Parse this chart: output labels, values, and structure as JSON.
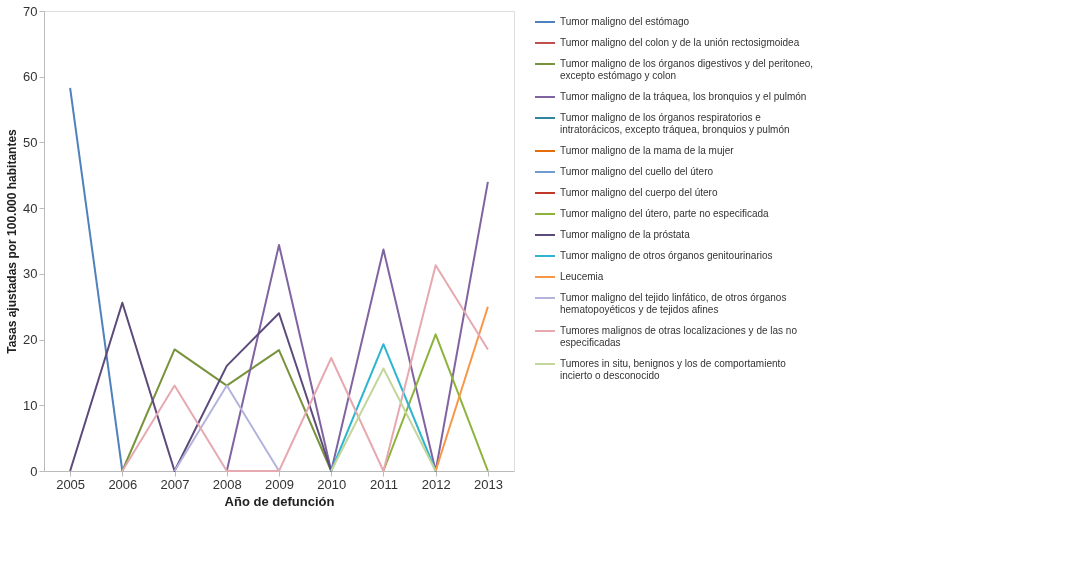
{
  "chart_data": {
    "type": "line",
    "xlabel": "Año de defunción",
    "ylabel": "Tasas ajustadas por 100.000 habitantes",
    "categories": [
      "2005",
      "2006",
      "2007",
      "2008",
      "2009",
      "2010",
      "2011",
      "2012",
      "2013"
    ],
    "ylim": [
      0,
      70
    ],
    "yticks": [
      0,
      10,
      20,
      30,
      40,
      50,
      60,
      70
    ],
    "grid": false,
    "legend": "right",
    "marker": "none",
    "line_style": "solid",
    "series": [
      {
        "name": "Tumor maligno del estómago",
        "color": "#4f81bd",
        "values": [
          58.3,
          0,
          null,
          null,
          null,
          null,
          null,
          null,
          null
        ]
      },
      {
        "name": "Tumor maligno del colon y de la unión rectosigmoidea",
        "color": "#c0504d",
        "values": [
          null,
          null,
          null,
          null,
          null,
          null,
          null,
          null,
          null
        ]
      },
      {
        "name": "Tumor maligno de los órganos digestivos y del peritoneo, excepto estómago y colon",
        "color": "#77933c",
        "values": [
          null,
          0,
          18.5,
          13,
          18.4,
          0,
          null,
          null,
          null
        ]
      },
      {
        "name": "Tumor maligno de la tráquea, los bronquios y el pulmón",
        "color": "#8064a2",
        "values": [
          null,
          null,
          null,
          0,
          34.4,
          0,
          33.7,
          0,
          44
        ]
      },
      {
        "name": "Tumor maligno de los órganos respiratorios e intratorácicos, excepto tráquea, bronquios y pulmón",
        "color": "#31859c",
        "values": [
          null,
          null,
          null,
          null,
          null,
          null,
          null,
          null,
          null
        ]
      },
      {
        "name": "Tumor maligno de la mama de la mujer",
        "color": "#e46c0a",
        "values": [
          null,
          null,
          null,
          null,
          null,
          null,
          null,
          null,
          null
        ]
      },
      {
        "name": "Tumor maligno del cuello del útero",
        "color": "#6f9bd1",
        "values": [
          null,
          null,
          null,
          null,
          null,
          null,
          null,
          null,
          null
        ]
      },
      {
        "name": "Tumor maligno del cuerpo del útero",
        "color": "#c0392b",
        "values": [
          null,
          null,
          null,
          null,
          null,
          null,
          null,
          null,
          null
        ]
      },
      {
        "name": "Tumor maligno del útero, parte no especificada",
        "color": "#8db33a",
        "values": [
          null,
          null,
          null,
          null,
          null,
          null,
          0,
          20.8,
          0
        ]
      },
      {
        "name": "Tumor maligno de la próstata",
        "color": "#5b4a7a",
        "values": [
          0,
          25.6,
          0,
          16,
          24,
          0,
          null,
          null,
          null
        ]
      },
      {
        "name": "Tumor maligno de otros órganos genitourinarios",
        "color": "#2eb6d0",
        "values": [
          null,
          null,
          null,
          null,
          null,
          0,
          19.3,
          0,
          null
        ]
      },
      {
        "name": "Leucemia",
        "color": "#f79646",
        "values": [
          null,
          null,
          null,
          null,
          null,
          null,
          null,
          0,
          25
        ]
      },
      {
        "name": "Tumor maligno del tejido linfático, de otros órganos hematopoyéticos y de tejidos afines",
        "color": "#b3b3dd",
        "values": [
          null,
          null,
          0,
          13,
          0,
          null,
          null,
          null,
          null
        ]
      },
      {
        "name": "Tumores malignos de otras localizaciones y de las no especificadas",
        "color": "#e6a9b0",
        "values": [
          null,
          0,
          13,
          0,
          0,
          17.2,
          0,
          31.3,
          18.5
        ]
      },
      {
        "name": "Tumores in situ, benignos y los de comportamiento incierto o desconocido",
        "color": "#c3d69b",
        "values": [
          null,
          null,
          null,
          null,
          null,
          0,
          15.6,
          0,
          null
        ]
      }
    ]
  }
}
